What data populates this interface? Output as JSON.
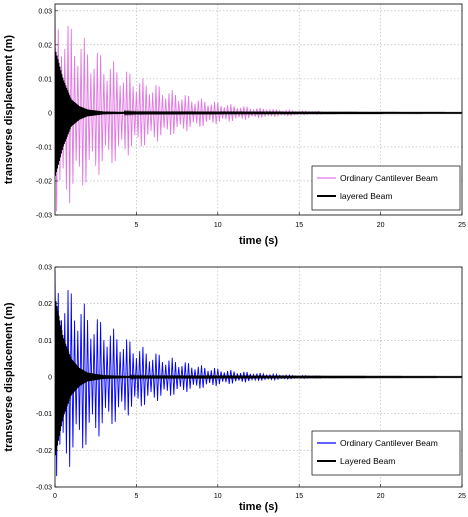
{
  "chart_data": [
    {
      "type": "line",
      "title": "",
      "xlabel": "time (s)",
      "ylabel": "transverse displacement (m)",
      "xlim": [
        0,
        25
      ],
      "ylim": [
        -0.03,
        0.032
      ],
      "xticks": [
        5,
        10,
        15,
        20,
        25
      ],
      "yticks": [
        0.03,
        0.02,
        0.01,
        0,
        -0.01,
        -0.02,
        -0.03
      ],
      "ytick_labels": [
        "0.03",
        "0.02",
        "0.01",
        "0",
        "-0.01",
        "-0.02",
        "-0.03"
      ],
      "xtick_labels": [
        "5",
        "10",
        "15",
        "20",
        "25"
      ],
      "grid": true,
      "legend_position": "bottom-right",
      "series": [
        {
          "name": "Ordinary Cantilever Beam",
          "color": "#e377e3",
          "envelope_t": [
            0,
            1,
            2,
            3,
            4,
            5,
            6,
            7,
            8,
            9,
            10,
            11,
            12,
            13,
            14,
            15,
            17,
            20,
            25
          ],
          "envelope_amp": [
            0.031,
            0.026,
            0.021,
            0.017,
            0.014,
            0.011,
            0.009,
            0.007,
            0.0055,
            0.0042,
            0.0032,
            0.0024,
            0.0018,
            0.0013,
            0.0009,
            0.0006,
            0.0003,
            0.0001,
            0.0
          ]
        },
        {
          "name": "layered Beam",
          "color": "#000000",
          "envelope_t": [
            0,
            0.5,
            1,
            1.5,
            2,
            3,
            5,
            25
          ],
          "envelope_amp": [
            0.019,
            0.01,
            0.004,
            0.002,
            0.001,
            0.0004,
            0.0002,
            0.0001
          ]
        }
      ]
    },
    {
      "type": "line",
      "title": "",
      "xlabel": "time (s)",
      "ylabel": "transverse displacement (m)",
      "xlim": [
        0,
        25
      ],
      "ylim": [
        -0.03,
        0.03
      ],
      "xticks": [
        0,
        5,
        10,
        15,
        20,
        25
      ],
      "yticks": [
        0.03,
        0.02,
        0.01,
        0,
        -0.01,
        -0.02,
        -0.03
      ],
      "ytick_labels": [
        "0.03",
        "0.02",
        "0.01",
        "0",
        "-0.01",
        "-0.02",
        "-0.03"
      ],
      "xtick_labels": [
        "0",
        "5",
        "10",
        "15",
        "20",
        "25"
      ],
      "grid": true,
      "legend_position": "bottom-right",
      "series": [
        {
          "name": "Ordinary Cantilever Beam",
          "color": "#0000ff",
          "envelope_t": [
            0,
            1,
            2,
            3,
            4,
            5,
            6,
            7,
            8,
            9,
            10,
            11,
            12,
            13,
            14,
            15,
            17,
            20,
            25
          ],
          "envelope_amp": [
            0.029,
            0.024,
            0.019,
            0.015,
            0.012,
            0.009,
            0.007,
            0.0055,
            0.0042,
            0.0032,
            0.0024,
            0.0018,
            0.0013,
            0.0009,
            0.0006,
            0.0004,
            0.0002,
            0.0001,
            0.0
          ]
        },
        {
          "name": "Layered Beam",
          "color": "#000000",
          "envelope_t": [
            0,
            0.5,
            1,
            1.5,
            2,
            3,
            5,
            25
          ],
          "envelope_amp": [
            0.022,
            0.011,
            0.005,
            0.0025,
            0.0012,
            0.0005,
            0.0002,
            0.0001
          ]
        }
      ]
    }
  ]
}
